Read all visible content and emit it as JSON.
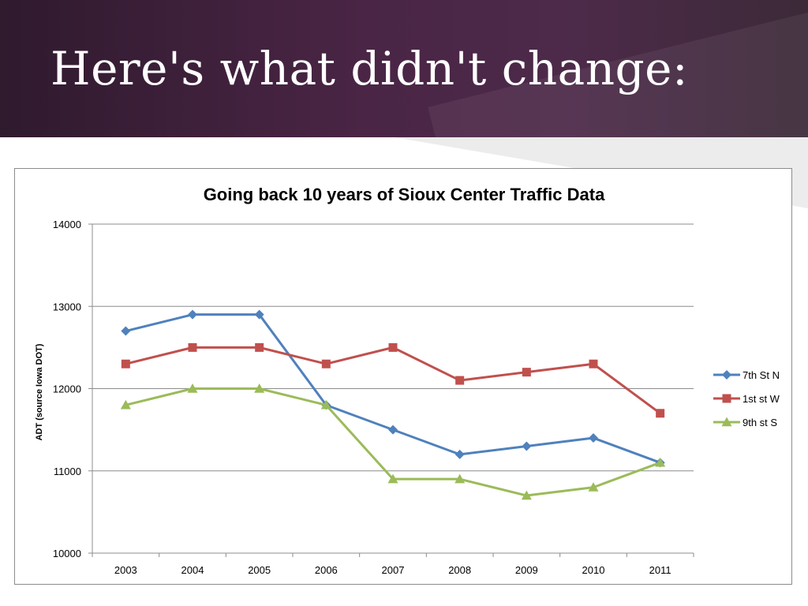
{
  "slide": {
    "title": "Here's what didn't change:"
  },
  "colors": {
    "header_bg": "#4a2545",
    "series_blue": "#4f81bd",
    "series_red": "#c0504d",
    "series_green": "#9bbb59"
  },
  "chart_data": {
    "type": "line",
    "title": "Going back 10 years of Sioux Center Traffic Data",
    "xlabel": "",
    "ylabel": "ADT (source Iowa DOT)",
    "ylim": [
      10000,
      14000
    ],
    "yticks": [
      10000,
      11000,
      12000,
      13000,
      14000
    ],
    "grid": true,
    "legend_position": "right",
    "categories": [
      "2003",
      "2004",
      "2005",
      "2006",
      "2007",
      "2008",
      "2009",
      "2010",
      "2011"
    ],
    "series": [
      {
        "name": "7th St N",
        "marker": "diamond",
        "color": "#4f81bd",
        "values": [
          12700,
          12900,
          12900,
          11800,
          11500,
          11200,
          11300,
          11400,
          11100
        ]
      },
      {
        "name": "1st st W",
        "marker": "square",
        "color": "#c0504d",
        "values": [
          12300,
          12500,
          12500,
          12300,
          12500,
          12100,
          12200,
          12300,
          11700
        ]
      },
      {
        "name": "9th st S",
        "marker": "triangle",
        "color": "#9bbb59",
        "values": [
          11800,
          12000,
          12000,
          11800,
          10900,
          10900,
          10700,
          10800,
          11100
        ]
      }
    ]
  }
}
